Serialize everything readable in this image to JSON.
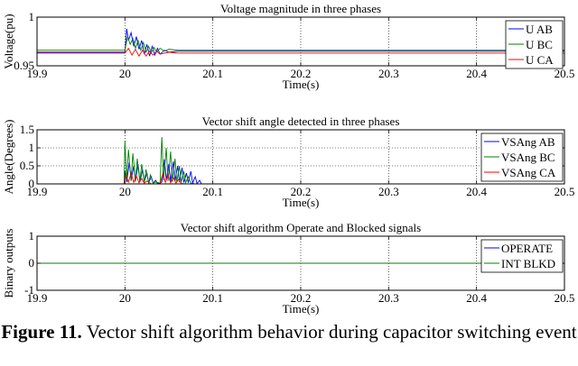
{
  "figure": {
    "caption_label": "Figure 11.",
    "caption_text": "Vector shift algorithm behavior during capacitor switching event"
  },
  "chart_data": [
    {
      "type": "line",
      "title": "Voltage magnitude in three phases",
      "xlabel": "Time(s)",
      "ylabel": "Voltage(pu)",
      "xlim": [
        19.9,
        20.5
      ],
      "ylim": [
        0.95,
        1.0
      ],
      "xticks": [
        19.9,
        20,
        20.1,
        20.2,
        20.3,
        20.4,
        20.5
      ],
      "xtick_labels": [
        "19.9",
        "20",
        "20.1",
        "20.2",
        "20.3",
        "20.4",
        "20.5"
      ],
      "yticks": [
        0.95,
        1.0
      ],
      "ytick_labels": [
        "0.95",
        "1"
      ],
      "grid": true,
      "legend_position": "right",
      "series": [
        {
          "name": "U AB",
          "color": "#0000ff",
          "x": [
            19.9,
            20.0,
            20.002,
            20.004,
            20.007,
            20.01,
            20.013,
            20.016,
            20.019,
            20.022,
            20.025,
            20.028,
            20.031,
            20.034,
            20.037,
            20.04,
            20.045,
            20.05,
            20.06,
            20.5
          ],
          "y": [
            0.964,
            0.964,
            0.988,
            0.976,
            0.984,
            0.97,
            0.98,
            0.967,
            0.976,
            0.962,
            0.972,
            0.96,
            0.97,
            0.961,
            0.968,
            0.962,
            0.966,
            0.964,
            0.965,
            0.965
          ]
        },
        {
          "name": "U BC",
          "color": "#008000",
          "x": [
            19.9,
            20.0,
            20.003,
            20.006,
            20.009,
            20.012,
            20.015,
            20.018,
            20.021,
            20.024,
            20.027,
            20.03,
            20.033,
            20.036,
            20.04,
            20.045,
            20.05,
            20.06,
            20.5
          ],
          "y": [
            0.966,
            0.966,
            0.98,
            0.972,
            0.978,
            0.968,
            0.976,
            0.966,
            0.974,
            0.964,
            0.97,
            0.963,
            0.969,
            0.964,
            0.968,
            0.965,
            0.967,
            0.966,
            0.966
          ]
        },
        {
          "name": "U CA",
          "color": "#ff0000",
          "x": [
            19.9,
            20.0,
            20.004,
            20.008,
            20.012,
            20.016,
            20.02,
            20.024,
            20.028,
            20.032,
            20.036,
            20.04,
            20.05,
            20.06,
            20.5
          ],
          "y": [
            0.963,
            0.963,
            0.968,
            0.961,
            0.967,
            0.96,
            0.966,
            0.96,
            0.965,
            0.961,
            0.965,
            0.962,
            0.964,
            0.963,
            0.963
          ]
        }
      ]
    },
    {
      "type": "line",
      "title": "Vector shift angle detected in three phases",
      "xlabel": "Time(s)",
      "ylabel": "Angle(Degrees)",
      "xlim": [
        19.9,
        20.5
      ],
      "ylim": [
        0,
        1.5
      ],
      "xticks": [
        19.9,
        20,
        20.1,
        20.2,
        20.3,
        20.4,
        20.5
      ],
      "xtick_labels": [
        "19.9",
        "20",
        "20.1",
        "20.2",
        "20.3",
        "20.4",
        "20.5"
      ],
      "yticks": [
        0,
        0.5,
        1,
        1.5
      ],
      "ytick_labels": [
        "0",
        "0.5",
        "1",
        "1.5"
      ],
      "grid": true,
      "legend_position": "right",
      "series": [
        {
          "name": "VSAng AB",
          "color": "#0000ff",
          "x": [
            19.9,
            19.999,
            20.0,
            20.002,
            20.005,
            20.007,
            20.01,
            20.012,
            20.015,
            20.017,
            20.02,
            20.022,
            20.025,
            20.027,
            20.03,
            20.032,
            20.035,
            20.037,
            20.04,
            20.042,
            20.045,
            20.047,
            20.05,
            20.052,
            20.055,
            20.057,
            20.06,
            20.062,
            20.065,
            20.067,
            20.07,
            20.072,
            20.075,
            20.077,
            20.08,
            20.082,
            20.085,
            20.087,
            20.09,
            20.5
          ],
          "y": [
            0,
            0,
            0.35,
            0.05,
            0.6,
            0.1,
            0.5,
            0.08,
            0.55,
            0.05,
            0.4,
            0.06,
            0.3,
            0.03,
            0.2,
            0.02,
            0.1,
            0.01,
            0.02,
            0.05,
            0.68,
            0.1,
            0.55,
            0.06,
            0.62,
            0.08,
            0.5,
            0.05,
            0.45,
            0.04,
            0.3,
            0.03,
            0.35,
            0.02,
            0.2,
            0.01,
            0.1,
            0.0,
            0.0,
            0.0
          ]
        },
        {
          "name": "VSAng BC",
          "color": "#008000",
          "x": [
            19.9,
            19.999,
            20.0,
            20.002,
            20.004,
            20.007,
            20.009,
            20.012,
            20.014,
            20.017,
            20.019,
            20.022,
            20.024,
            20.027,
            20.029,
            20.032,
            20.035,
            20.04,
            20.042,
            20.044,
            20.047,
            20.049,
            20.052,
            20.054,
            20.057,
            20.059,
            20.062,
            20.064,
            20.067,
            20.069,
            20.072,
            20.075,
            20.08,
            20.5
          ],
          "y": [
            0,
            0,
            1.2,
            0.1,
            0.95,
            0.08,
            0.85,
            0.06,
            0.7,
            0.05,
            0.55,
            0.04,
            0.4,
            0.03,
            0.25,
            0.02,
            0.05,
            0.02,
            1.3,
            0.1,
            1.0,
            0.08,
            0.9,
            0.06,
            0.7,
            0.05,
            0.5,
            0.04,
            0.35,
            0.03,
            0.2,
            0.02,
            0.0,
            0.0
          ]
        },
        {
          "name": "VSAng CA",
          "color": "#ff0000",
          "x": [
            19.9,
            19.999,
            20.001,
            20.004,
            20.007,
            20.01,
            20.013,
            20.016,
            20.019,
            20.022,
            20.025,
            20.03,
            20.04,
            20.043,
            20.046,
            20.049,
            20.052,
            20.055,
            20.058,
            20.061,
            20.064,
            20.07,
            20.5
          ],
          "y": [
            0,
            0,
            0.25,
            0.05,
            0.3,
            0.04,
            0.22,
            0.03,
            0.15,
            0.02,
            0.08,
            0.0,
            0.0,
            0.28,
            0.04,
            0.25,
            0.03,
            0.18,
            0.02,
            0.12,
            0.01,
            0.0,
            0.0
          ]
        }
      ]
    },
    {
      "type": "line",
      "title": "Vector shift algorithm Operate and Blocked signals",
      "xlabel": "Time(s)",
      "ylabel": "Binary outputs",
      "xlim": [
        19.9,
        20.5
      ],
      "ylim": [
        -1,
        1
      ],
      "xticks": [
        19.9,
        20,
        20.1,
        20.2,
        20.3,
        20.4,
        20.5
      ],
      "xtick_labels": [
        "19.9",
        "20",
        "20.1",
        "20.2",
        "20.3",
        "20.4",
        "20.5"
      ],
      "yticks": [
        -1,
        0,
        1
      ],
      "ytick_labels": [
        "-1",
        "0",
        "1"
      ],
      "grid": true,
      "legend_position": "right",
      "series": [
        {
          "name": "OPERATE",
          "color": "#0000ff",
          "x": [
            19.9,
            20.5
          ],
          "y": [
            0,
            0
          ]
        },
        {
          "name": "INT BLKD",
          "color": "#008000",
          "x": [
            19.9,
            20.5
          ],
          "y": [
            0,
            0
          ]
        }
      ]
    }
  ]
}
